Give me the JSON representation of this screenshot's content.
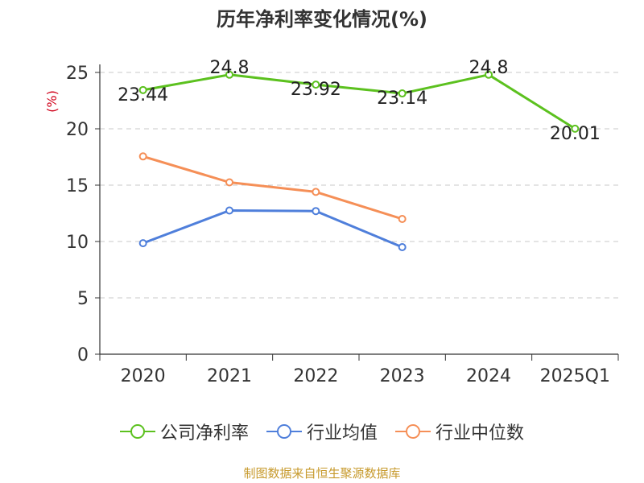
{
  "chart_data": {
    "type": "line",
    "title": "历年净利率变化情况(%)",
    "ylabel": "(%)",
    "xlabel": "",
    "categories": [
      "2020",
      "2021",
      "2022",
      "2023",
      "2024",
      "2025Q1"
    ],
    "ylim": [
      0,
      25
    ],
    "yticks": [
      0,
      5,
      10,
      15,
      20,
      25
    ],
    "grid": true,
    "legend_position": "bottom",
    "series": [
      {
        "name": "公司净利率",
        "color": "#5cc11f",
        "values": [
          23.44,
          24.8,
          23.92,
          23.14,
          24.8,
          20.01
        ],
        "labels": [
          "23.44",
          "24.8",
          "23.92",
          "23.14",
          "24.8",
          "20.01"
        ]
      },
      {
        "name": "行业均值",
        "color": "#4f7fdb",
        "values": [
          9.85,
          12.75,
          12.7,
          9.5,
          null,
          null
        ]
      },
      {
        "name": "行业中位数",
        "color": "#f58f57",
        "values": [
          17.55,
          15.25,
          14.4,
          12.0,
          null,
          null
        ]
      }
    ]
  },
  "source_text": "制图数据来自恒生聚源数据库"
}
